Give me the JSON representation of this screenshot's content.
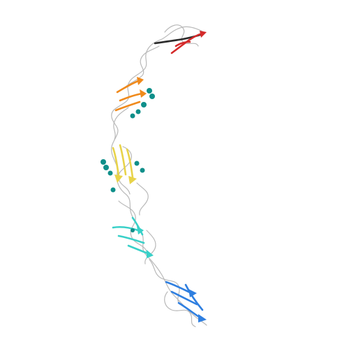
{
  "image": {
    "subject": "protein-ribbon-structure",
    "background_color": "#ffffff",
    "domains": [
      {
        "name": "domain-1",
        "color": "#d42a2a",
        "accent": "#2b2b2b"
      },
      {
        "name": "domain-2",
        "color": "#f08a1c"
      },
      {
        "name": "domain-3",
        "color": "#e8d34a"
      },
      {
        "name": "domain-4",
        "color": "#39d0c8"
      },
      {
        "name": "domain-5",
        "color": "#2f7fe0"
      }
    ],
    "ligand_color": "#0f8f8a",
    "coil_color": "#b9b9b9"
  }
}
